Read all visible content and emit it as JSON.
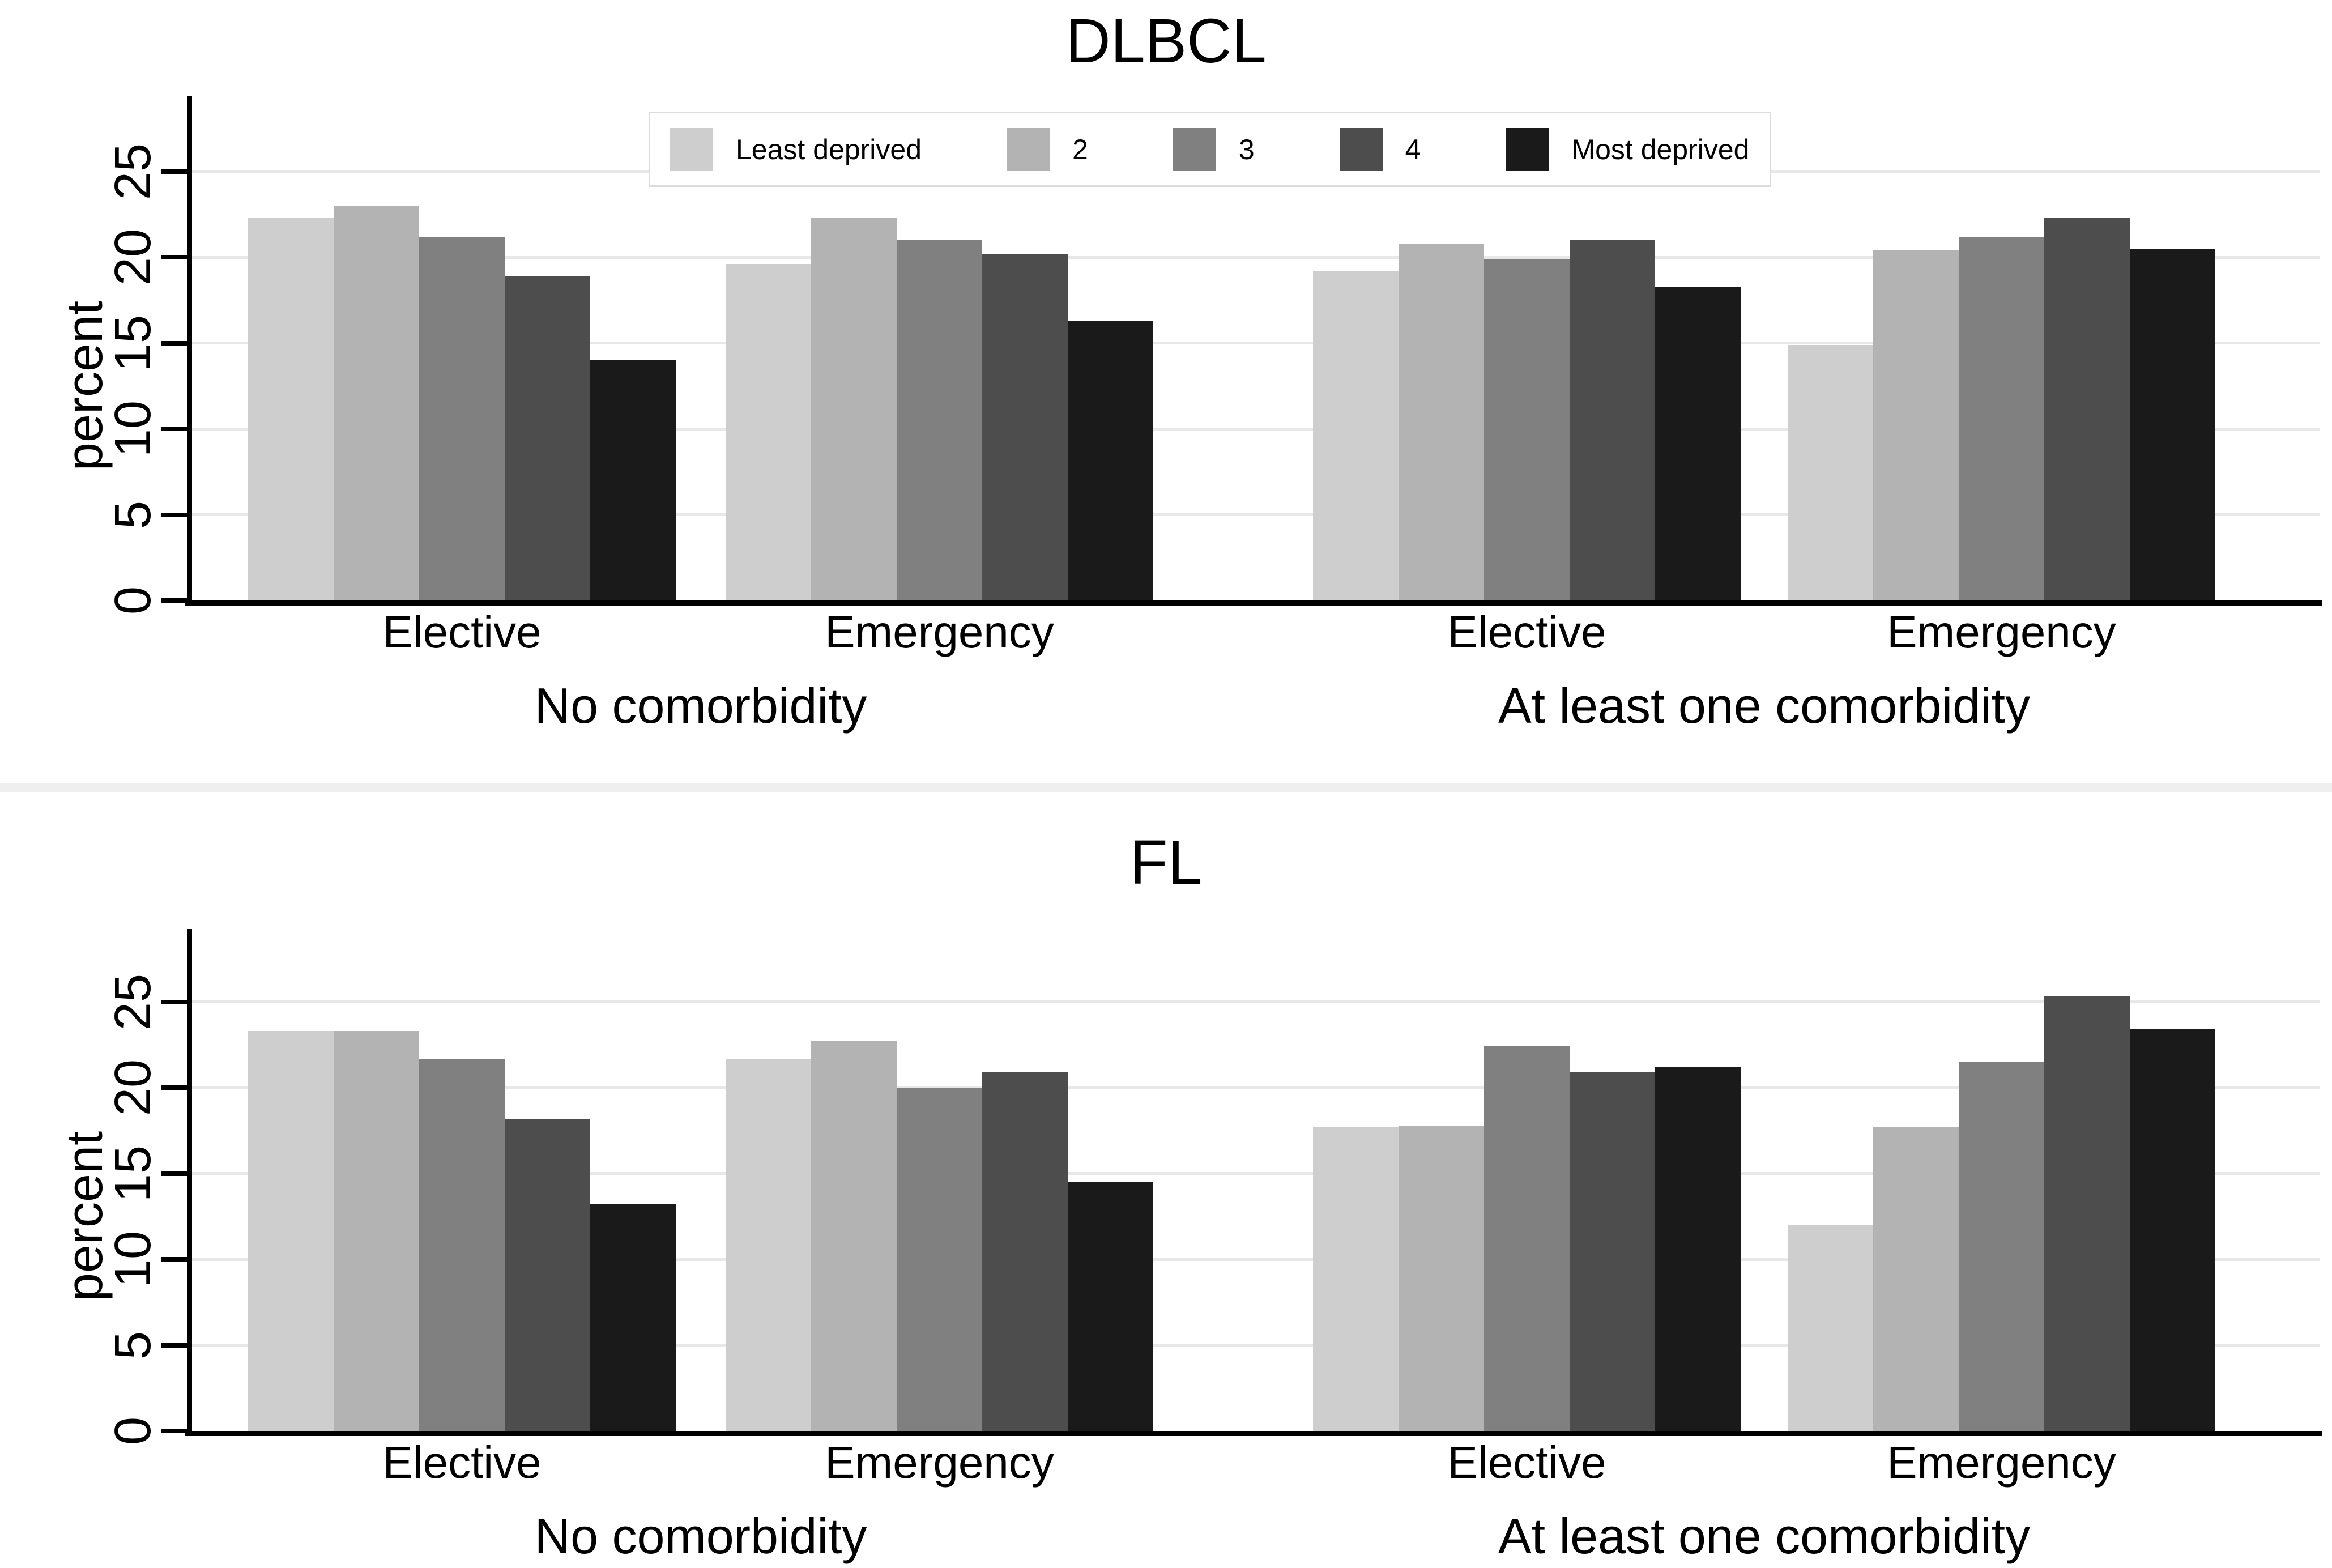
{
  "figure": {
    "background": "#ffffff",
    "divider_color": "#efefef",
    "grid_color": "#e8e8e8",
    "axis_color": "#000000",
    "text_color": "#000000",
    "legend_border_color": "#dcdcdc",
    "series_colors": [
      "#cecece",
      "#b3b3b3",
      "#808080",
      "#4d4d4d",
      "#1a1a1a"
    ]
  },
  "chart_data": [
    {
      "type": "bar",
      "title": "DLBCL",
      "ylabel": "percent",
      "yticks": [
        0,
        5,
        10,
        15,
        20,
        25
      ],
      "ylim": [
        0,
        29.3
      ],
      "grid": "horizontal",
      "legend": {
        "position": "top-center-inside",
        "entries": [
          "Least deprived",
          "2",
          "3",
          "4",
          "Most deprived"
        ]
      },
      "series_names": [
        "Least deprived",
        "2",
        "3",
        "4",
        "Most deprived"
      ],
      "groups": [
        {
          "label": "No comorbidity",
          "clusters": [
            {
              "label": "Elective",
              "values": [
                22.3,
                23.0,
                21.2,
                18.9,
                14.0
              ]
            },
            {
              "label": "Emergency",
              "values": [
                19.6,
                22.3,
                21.0,
                20.2,
                16.3
              ]
            }
          ]
        },
        {
          "label": "At least one comorbidity",
          "clusters": [
            {
              "label": "Elective",
              "values": [
                19.2,
                20.8,
                19.9,
                21.0,
                18.3
              ]
            },
            {
              "label": "Emergency",
              "values": [
                14.9,
                20.4,
                21.2,
                22.3,
                20.5
              ]
            }
          ]
        }
      ]
    },
    {
      "type": "bar",
      "title": "FL",
      "ylabel": "percent",
      "yticks": [
        0,
        5,
        10,
        15,
        20,
        25
      ],
      "ylim": [
        0,
        29.3
      ],
      "grid": "horizontal",
      "legend": null,
      "series_names": [
        "Least deprived",
        "2",
        "3",
        "4",
        "Most deprived"
      ],
      "groups": [
        {
          "label": "No comorbidity",
          "clusters": [
            {
              "label": "Elective",
              "values": [
                23.3,
                23.3,
                21.7,
                18.2,
                13.2
              ]
            },
            {
              "label": "Emergency",
              "values": [
                21.7,
                22.7,
                20.0,
                20.9,
                14.5
              ]
            }
          ]
        },
        {
          "label": "At least one comorbidity",
          "clusters": [
            {
              "label": "Elective",
              "values": [
                17.7,
                17.8,
                22.4,
                20.9,
                21.2
              ]
            },
            {
              "label": "Emergency",
              "values": [
                12.0,
                17.7,
                21.5,
                25.3,
                23.4
              ]
            }
          ]
        }
      ]
    }
  ]
}
